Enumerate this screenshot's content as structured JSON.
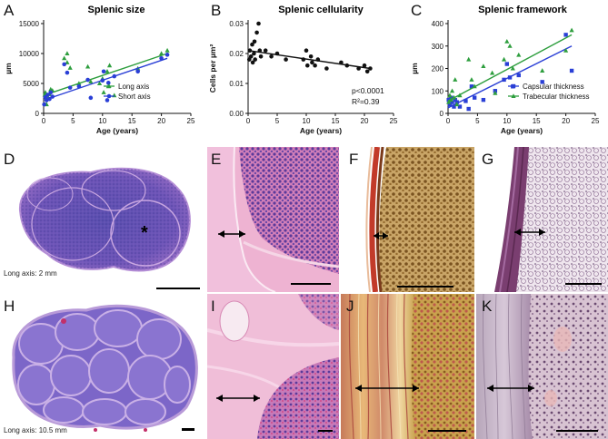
{
  "panels": {
    "A": "A",
    "B": "B",
    "C": "C",
    "D": "D",
    "E": "E",
    "F": "F",
    "G": "G",
    "H": "H",
    "I": "I",
    "J": "J",
    "K": "K"
  },
  "captions": {
    "D": "Long axis: 2 mm",
    "H": "Long axis: 10.5 mm",
    "D_marker": "*"
  },
  "colors": {
    "green": "#2e9e3e",
    "blue": "#2a3fd6",
    "black": "#111111"
  },
  "chart_data": [
    {
      "type": "scatter",
      "title": "Splenic size",
      "xlabel": "Age (years)",
      "ylabel": "µm",
      "xlim": [
        0,
        25
      ],
      "ylim": [
        0,
        15000
      ],
      "xticks": [
        0,
        5,
        10,
        15,
        20,
        25
      ],
      "yticks": [
        0,
        5000,
        10000,
        15000
      ],
      "ytick_labels": [
        "0",
        "5000",
        "10000",
        "15000"
      ],
      "legend_position": "bottom-right",
      "series": [
        {
          "name": "Long axis",
          "marker": "triangle",
          "color": "#2e9e3e",
          "points": [
            [
              0.2,
              3100
            ],
            [
              0.3,
              3500
            ],
            [
              0.5,
              1500
            ],
            [
              0.7,
              2700
            ],
            [
              1,
              3200
            ],
            [
              1.2,
              4000
            ],
            [
              1.5,
              3800
            ],
            [
              3.5,
              9200
            ],
            [
              4,
              10000
            ],
            [
              4,
              8500
            ],
            [
              4.5,
              7600
            ],
            [
              6,
              5000
            ],
            [
              7.5,
              7800
            ],
            [
              8,
              5300
            ],
            [
              9.5,
              5000
            ],
            [
              10,
              5800
            ],
            [
              10.2,
              3500
            ],
            [
              10.8,
              7000
            ],
            [
              11,
              4500
            ],
            [
              11.2,
              8000
            ],
            [
              12,
              3000
            ],
            [
              16,
              7500
            ],
            [
              20,
              10000
            ],
            [
              21,
              10500
            ]
          ],
          "fit": [
            [
              0,
              3000
            ],
            [
              21,
              10000
            ]
          ]
        },
        {
          "name": "Short axis",
          "marker": "circle",
          "color": "#2a3fd6",
          "points": [
            [
              0.1,
              1500
            ],
            [
              0.3,
              2700
            ],
            [
              0.5,
              2200
            ],
            [
              0.7,
              3100
            ],
            [
              1,
              2400
            ],
            [
              1.2,
              3500
            ],
            [
              1.5,
              2800
            ],
            [
              3.5,
              8200
            ],
            [
              4,
              6800
            ],
            [
              4.5,
              4300
            ],
            [
              6,
              4500
            ],
            [
              7.5,
              5600
            ],
            [
              8,
              2600
            ],
            [
              10,
              5500
            ],
            [
              10.2,
              7000
            ],
            [
              10.8,
              2200
            ],
            [
              11,
              5100
            ],
            [
              12,
              6200
            ],
            [
              16,
              7000
            ],
            [
              20,
              9200
            ],
            [
              21,
              9800
            ]
          ],
          "fit": [
            [
              0,
              2200
            ],
            [
              21,
              9200
            ]
          ]
        }
      ]
    },
    {
      "type": "scatter",
      "title": "Splenic cellularity",
      "xlabel": "Age (years)",
      "ylabel": "Cells per µm²",
      "xlim": [
        0,
        25
      ],
      "ylim": [
        0,
        0.03
      ],
      "xticks": [
        0,
        5,
        10,
        15,
        20,
        25
      ],
      "yticks": [
        0,
        0.01,
        0.02,
        0.03
      ],
      "ytick_labels": [
        "0.00",
        "0.01",
        "0.02",
        "0.03"
      ],
      "annotations": [
        "p<0.0001",
        "R²=0.39"
      ],
      "series": [
        {
          "marker": "circle",
          "color": "#111111",
          "points": [
            [
              0.2,
              0.018
            ],
            [
              0.3,
              0.021
            ],
            [
              0.5,
              0.019
            ],
            [
              0.7,
              0.023
            ],
            [
              0.8,
              0.017
            ],
            [
              1,
              0.02
            ],
            [
              1.1,
              0.024
            ],
            [
              1.2,
              0.018
            ],
            [
              1.5,
              0.027
            ],
            [
              1.8,
              0.03
            ],
            [
              2,
              0.021
            ],
            [
              2.2,
              0.019
            ],
            [
              3,
              0.021
            ],
            [
              4,
              0.019
            ],
            [
              5,
              0.02
            ],
            [
              6.5,
              0.018
            ],
            [
              9.5,
              0.018
            ],
            [
              10,
              0.021
            ],
            [
              10.2,
              0.016
            ],
            [
              10.8,
              0.019
            ],
            [
              11,
              0.017
            ],
            [
              11.5,
              0.016
            ],
            [
              12,
              0.018
            ],
            [
              13.5,
              0.015
            ],
            [
              16,
              0.017
            ],
            [
              17,
              0.016
            ],
            [
              19,
              0.015
            ],
            [
              20,
              0.016
            ],
            [
              20.5,
              0.014
            ],
            [
              21,
              0.015
            ]
          ],
          "fit": [
            [
              0,
              0.021
            ],
            [
              21,
              0.015
            ]
          ]
        }
      ]
    },
    {
      "type": "scatter",
      "title": "Splenic framework",
      "xlabel": "Age (years)",
      "ylabel": "µm",
      "xlim": [
        0,
        25
      ],
      "ylim": [
        0,
        400
      ],
      "xticks": [
        0,
        5,
        10,
        15,
        20,
        25
      ],
      "yticks": [
        0,
        100,
        200,
        300,
        400
      ],
      "ytick_labels": [
        "0",
        "100",
        "200",
        "300",
        "400"
      ],
      "legend_position": "bottom-right",
      "series": [
        {
          "name": "Capsular thickness",
          "marker": "square",
          "color": "#2a3fd6",
          "points": [
            [
              0.1,
              60
            ],
            [
              0.3,
              40
            ],
            [
              0.5,
              70
            ],
            [
              0.7,
              50
            ],
            [
              1,
              30
            ],
            [
              1.2,
              60
            ],
            [
              1.5,
              50
            ],
            [
              2,
              30
            ],
            [
              3,
              55
            ],
            [
              3.5,
              20
            ],
            [
              4,
              120
            ],
            [
              4.5,
              70
            ],
            [
              6,
              60
            ],
            [
              8,
              100
            ],
            [
              9.5,
              150
            ],
            [
              10,
              220
            ],
            [
              10.5,
              160
            ],
            [
              11,
              120
            ],
            [
              12,
              170
            ],
            [
              16,
              140
            ],
            [
              20,
              350
            ],
            [
              21,
              190
            ]
          ],
          "fit": [
            [
              0,
              25
            ],
            [
              21,
              300
            ]
          ]
        },
        {
          "name": "Trabecular thickness",
          "marker": "triangle",
          "color": "#2e9e3e",
          "points": [
            [
              0.1,
              50
            ],
            [
              0.3,
              80
            ],
            [
              0.5,
              60
            ],
            [
              0.7,
              100
            ],
            [
              1,
              70
            ],
            [
              1.2,
              150
            ],
            [
              1.5,
              40
            ],
            [
              2,
              80
            ],
            [
              3.5,
              240
            ],
            [
              4,
              150
            ],
            [
              4.5,
              120
            ],
            [
              6,
              210
            ],
            [
              7.5,
              180
            ],
            [
              8,
              90
            ],
            [
              9.5,
              240
            ],
            [
              10,
              320
            ],
            [
              10.5,
              300
            ],
            [
              11,
              200
            ],
            [
              12,
              260
            ],
            [
              16,
              190
            ],
            [
              20,
              280
            ],
            [
              21,
              370
            ]
          ],
          "fit": [
            [
              0,
              55
            ],
            [
              21,
              350
            ]
          ]
        }
      ]
    }
  ]
}
